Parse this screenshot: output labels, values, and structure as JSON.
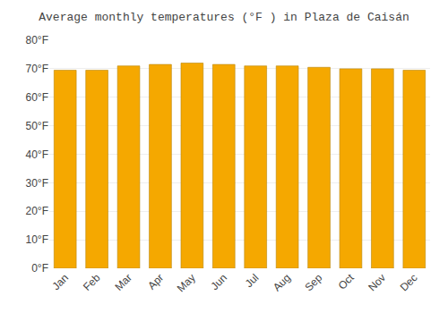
{
  "chart_data": {
    "type": "bar",
    "title": "Average monthly temperatures (°F ) in Plaza de Caisán",
    "categories": [
      "Jan",
      "Feb",
      "Mar",
      "Apr",
      "May",
      "Jun",
      "Jul",
      "Aug",
      "Sep",
      "Oct",
      "Nov",
      "Dec"
    ],
    "values": [
      69.5,
      69.5,
      71.0,
      71.5,
      72.0,
      71.5,
      71.0,
      71.0,
      70.5,
      70.0,
      70.0,
      69.5
    ],
    "color": "#F5A800",
    "ylim": [
      0,
      80
    ],
    "yticks": [
      {
        "value": 0,
        "label": "0°F"
      },
      {
        "value": 10,
        "label": "10°F"
      },
      {
        "value": 20,
        "label": "20°F"
      },
      {
        "value": 30,
        "label": "30°F"
      },
      {
        "value": 40,
        "label": "40°F"
      },
      {
        "value": 50,
        "label": "50°F"
      },
      {
        "value": 60,
        "label": "60°F"
      },
      {
        "value": 70,
        "label": "70°F"
      },
      {
        "value": 80,
        "label": "80°F"
      }
    ],
    "grid": true
  }
}
